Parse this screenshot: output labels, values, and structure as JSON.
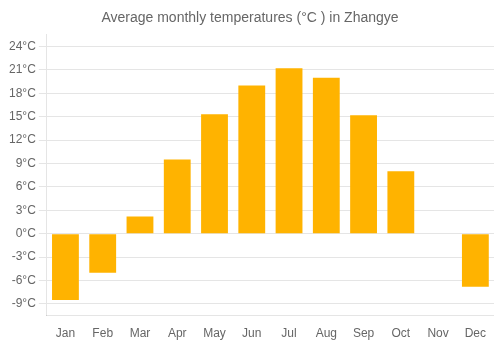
{
  "chart_data": {
    "type": "bar",
    "title": "Average monthly temperatures (°C ) in Zhangye",
    "categories": [
      "Jan",
      "Feb",
      "Mar",
      "Apr",
      "May",
      "Jun",
      "Jul",
      "Aug",
      "Sep",
      "Oct",
      "Nov",
      "Dec"
    ],
    "values": [
      -8.5,
      -5.0,
      2.2,
      9.5,
      15.3,
      19.0,
      21.2,
      20.0,
      15.2,
      8.0,
      0.0,
      -6.8
    ],
    "color": "#FFB300",
    "ylim": [
      -10.5,
      25.5
    ],
    "yticks": [
      {
        "value": -9,
        "label": "-9°C"
      },
      {
        "value": -6,
        "label": "-6°C"
      },
      {
        "value": -3,
        "label": "-3°C"
      },
      {
        "value": 0,
        "label": "0°C"
      },
      {
        "value": 3,
        "label": "3°C"
      },
      {
        "value": 6,
        "label": "6°C"
      },
      {
        "value": 9,
        "label": "9°C"
      },
      {
        "value": 12,
        "label": "12°C"
      },
      {
        "value": 15,
        "label": "15°C"
      },
      {
        "value": 18,
        "label": "18°C"
      },
      {
        "value": 21,
        "label": "21°C"
      },
      {
        "value": 24,
        "label": "24°C"
      }
    ],
    "grid": true
  }
}
